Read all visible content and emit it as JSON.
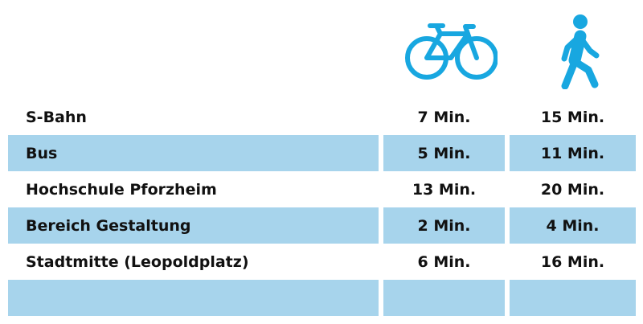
{
  "header": {
    "icons": [
      {
        "name": "bicycle-icon",
        "color": "#18a7e0"
      },
      {
        "name": "pedestrian-icon",
        "color": "#18a7e0"
      }
    ]
  },
  "table": {
    "shade_color": "#a7d4ec",
    "rows": [
      {
        "label": "S-Bahn",
        "bike": "7 Min.",
        "walk": "15 Min."
      },
      {
        "label": "Bus",
        "bike": "5 Min.",
        "walk": "11 Min."
      },
      {
        "label": "Hochschule Pforzheim",
        "bike": "13 Min.",
        "walk": "20 Min."
      },
      {
        "label": "Bereich Gestaltung",
        "bike": "2 Min.",
        "walk": "4 Min."
      },
      {
        "label": "Stadtmitte (Leopoldplatz)",
        "bike": "6 Min.",
        "walk": "16 Min."
      },
      {
        "label": "",
        "bike": "",
        "walk": ""
      }
    ]
  }
}
